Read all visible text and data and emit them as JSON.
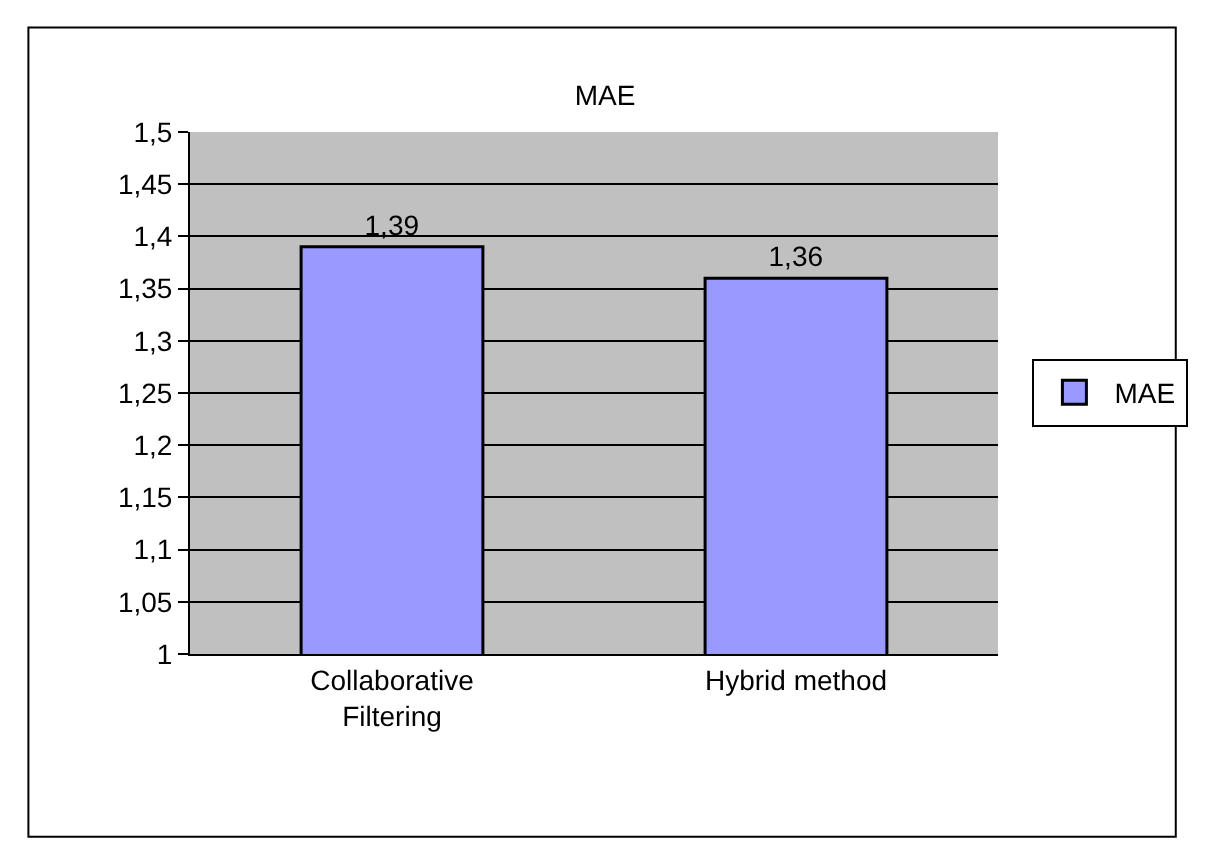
{
  "chart_data": {
    "type": "bar",
    "title": "MAE",
    "categories": [
      "Collaborative Filtering",
      "Hybrid method"
    ],
    "series": [
      {
        "name": "MAE",
        "color": "#9999ff",
        "values": [
          1.39,
          1.36
        ],
        "value_labels": [
          "1,39",
          "1,36"
        ]
      }
    ],
    "ylim": [
      1,
      1.5
    ],
    "yticks": [
      1,
      {
        "value": 1.05,
        "label": "1,05"
      },
      {
        "value": 1.1,
        "label": "1,1"
      },
      {
        "value": 1.15,
        "label": "1,15"
      },
      {
        "value": 1.2,
        "label": "1,2"
      },
      {
        "value": 1.25,
        "label": "1,25"
      },
      {
        "value": 1.3,
        "label": "1,3"
      },
      {
        "value": 1.35,
        "label": "1,35"
      },
      {
        "value": 1.4,
        "label": "1,4"
      },
      {
        "value": 1.45,
        "label": "1,45"
      },
      {
        "value": 1.5,
        "label": "1,5"
      }
    ],
    "grid": "y",
    "legend": "right"
  }
}
